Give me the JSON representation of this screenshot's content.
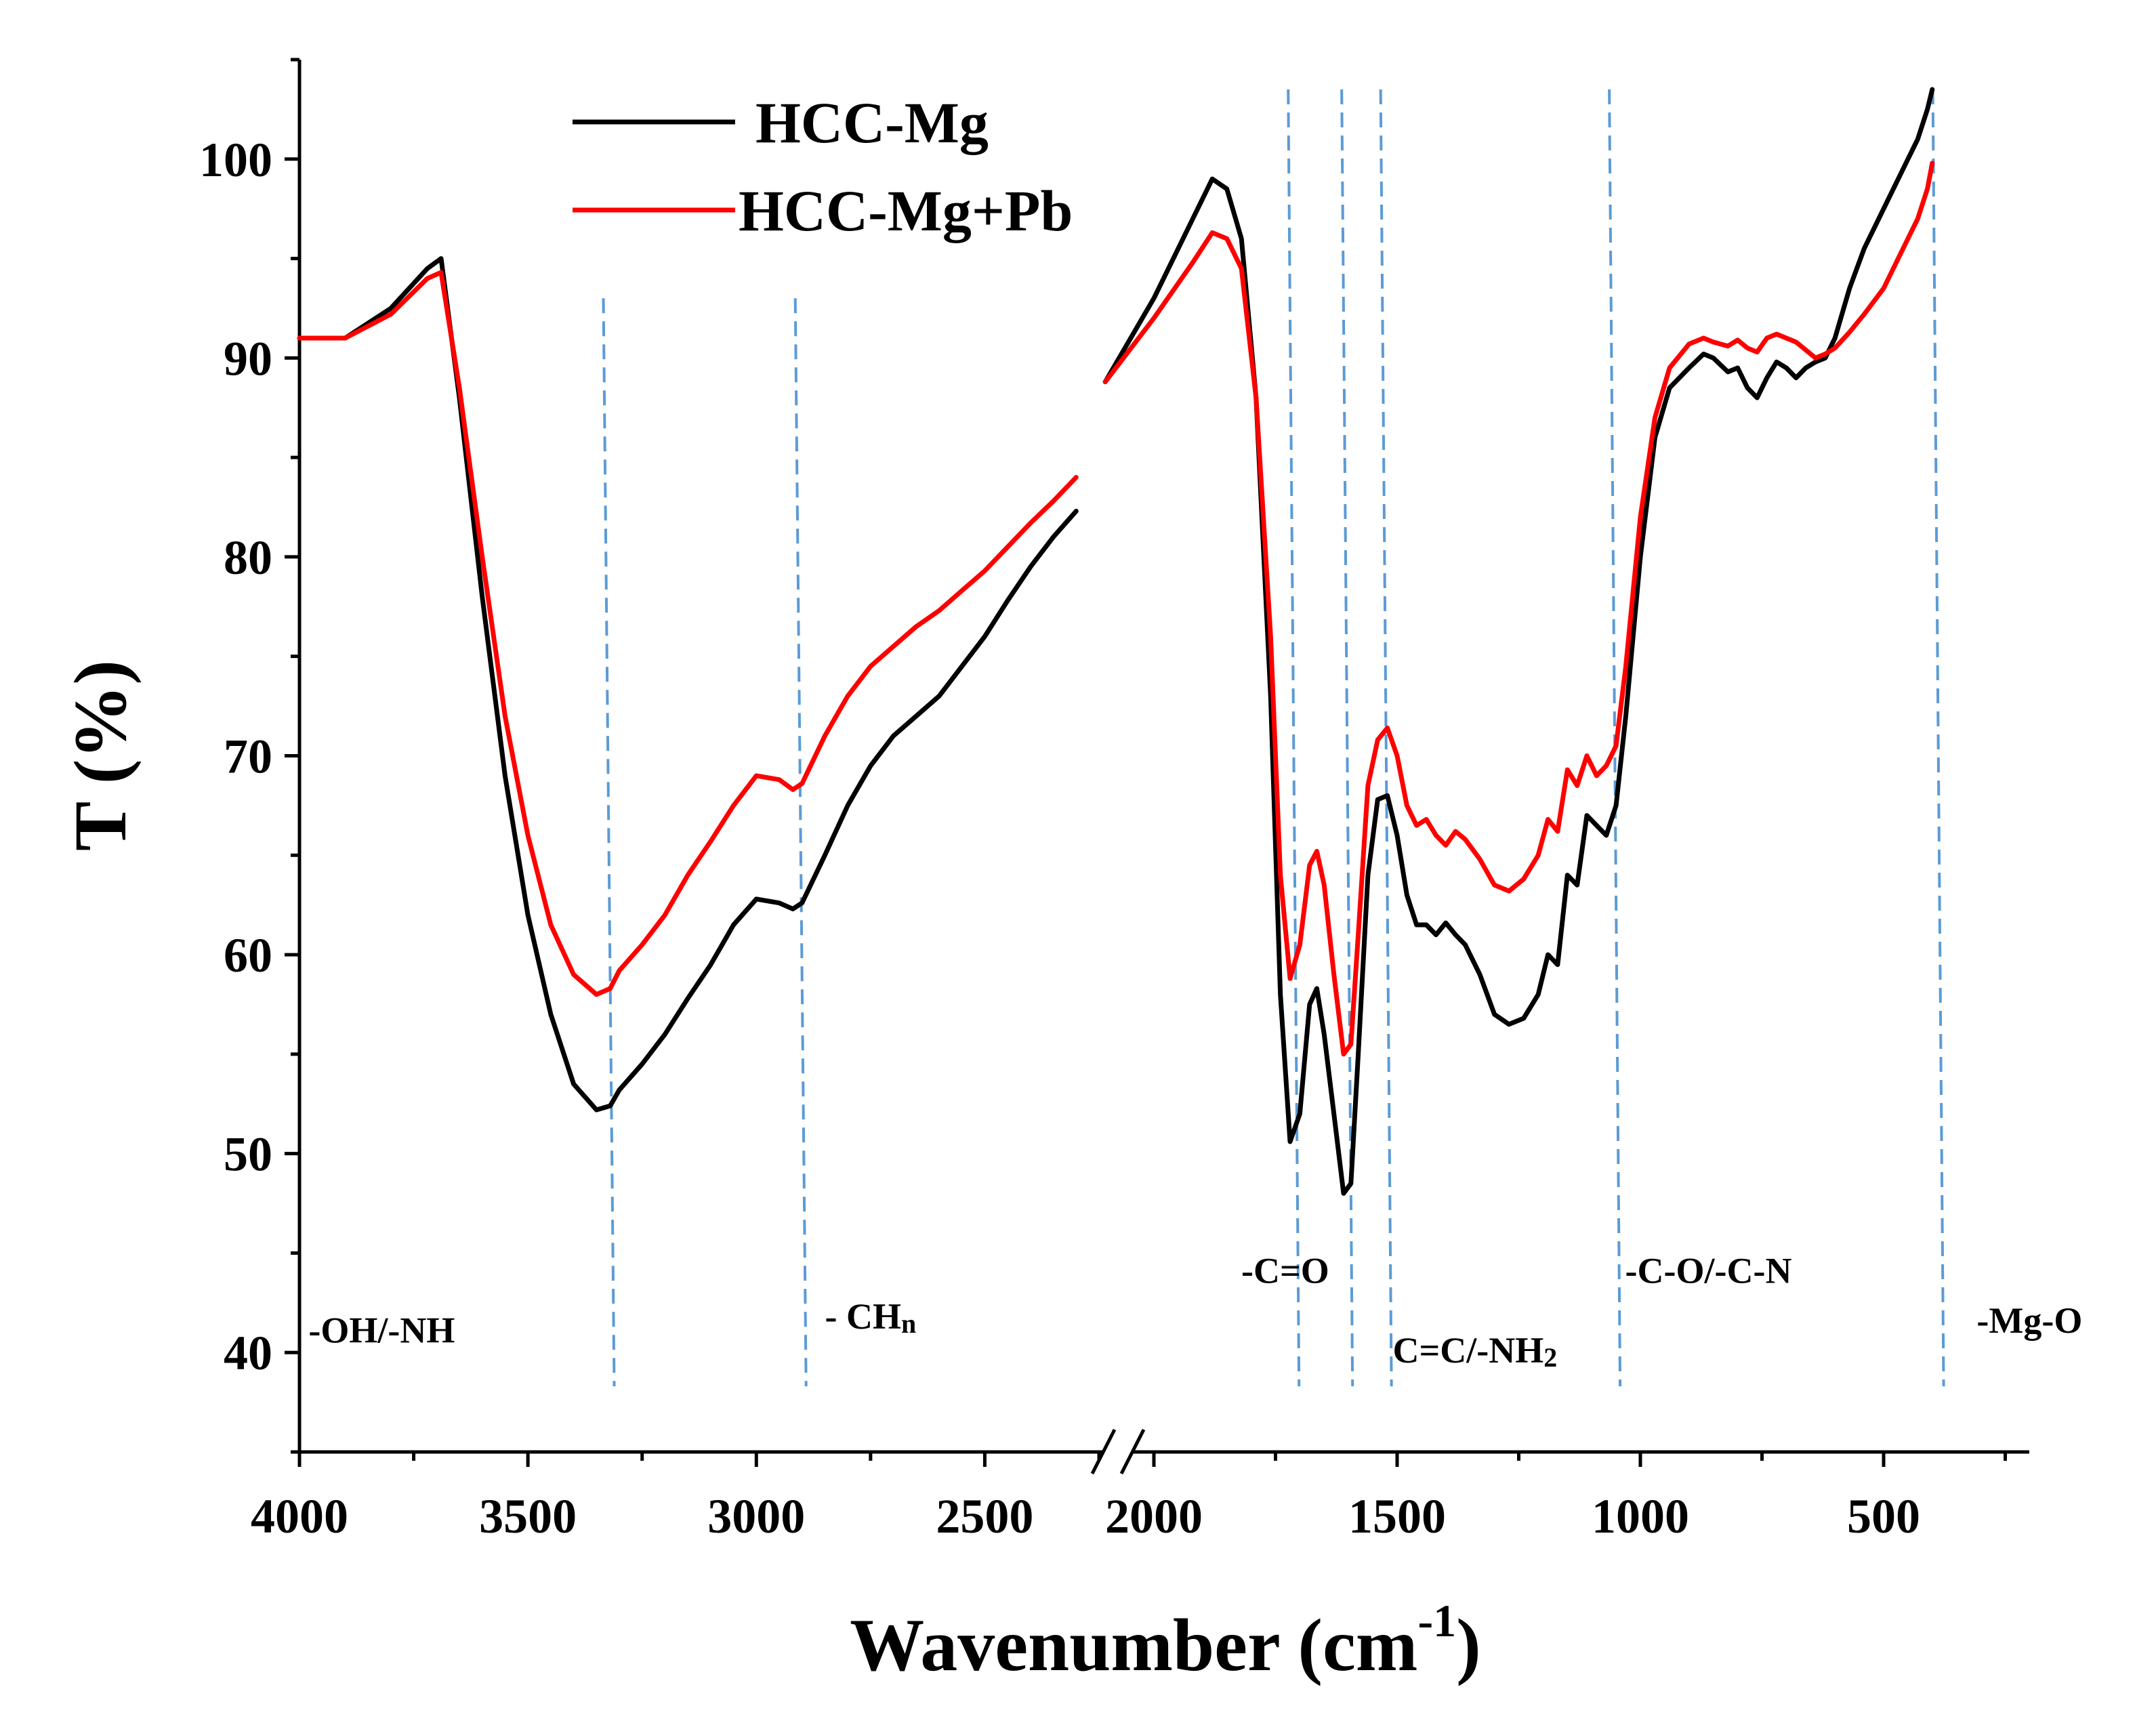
{
  "chart_data": {
    "type": "line",
    "title": "",
    "xlabel": "Wavenumber (cm",
    "xlabel_sup": "-1",
    "xlabel_close": ")",
    "ylabel": "T (%)",
    "xlim": [
      4000,
      250
    ],
    "ylim": [
      35,
      105
    ],
    "axis_break": [
      2250,
      2100
    ],
    "grid": false,
    "legend_position": "top-left",
    "x_ticks": [
      4000,
      3500,
      3000,
      2500,
      2000,
      1500,
      1000,
      500
    ],
    "x_tick_labels": [
      "4000",
      "3500",
      "3000",
      "2500",
      "2000",
      "1500",
      "1000",
      "500"
    ],
    "y_ticks": [
      40,
      50,
      60,
      70,
      80,
      90,
      100
    ],
    "y_tick_labels": [
      "40",
      "50",
      "60",
      "70",
      "80",
      "90",
      "100"
    ],
    "series": [
      {
        "name": "HCC-Mg",
        "color": "#000000",
        "points": [
          [
            4000,
            91.0
          ],
          [
            3900,
            91.0
          ],
          [
            3800,
            92.5
          ],
          [
            3720,
            94.5
          ],
          [
            3690,
            95.0
          ],
          [
            3650,
            88.0
          ],
          [
            3600,
            78.0
          ],
          [
            3550,
            69.0
          ],
          [
            3500,
            62.0
          ],
          [
            3450,
            57.0
          ],
          [
            3400,
            53.5
          ],
          [
            3350,
            52.2
          ],
          [
            3320,
            52.4
          ],
          [
            3300,
            53.2
          ],
          [
            3250,
            54.5
          ],
          [
            3200,
            56.0
          ],
          [
            3150,
            57.8
          ],
          [
            3100,
            59.5
          ],
          [
            3050,
            61.5
          ],
          [
            3000,
            62.8
          ],
          [
            2950,
            62.6
          ],
          [
            2920,
            62.3
          ],
          [
            2900,
            62.6
          ],
          [
            2850,
            65.0
          ],
          [
            2800,
            67.5
          ],
          [
            2750,
            69.5
          ],
          [
            2700,
            71.0
          ],
          [
            2650,
            72.0
          ],
          [
            2600,
            73.0
          ],
          [
            2550,
            74.5
          ],
          [
            2500,
            76.0
          ],
          [
            2450,
            77.8
          ],
          [
            2400,
            79.5
          ],
          [
            2350,
            81.0
          ],
          [
            2300,
            82.3
          ],
          [
            2100,
            88.8
          ],
          [
            2000,
            93.0
          ],
          [
            1920,
            97.0
          ],
          [
            1880,
            99.0
          ],
          [
            1850,
            98.5
          ],
          [
            1820,
            96.0
          ],
          [
            1790,
            88.0
          ],
          [
            1760,
            73.0
          ],
          [
            1740,
            58.0
          ],
          [
            1720,
            50.6
          ],
          [
            1700,
            52.0
          ],
          [
            1680,
            57.5
          ],
          [
            1665,
            58.3
          ],
          [
            1650,
            56.0
          ],
          [
            1630,
            52.0
          ],
          [
            1610,
            48.0
          ],
          [
            1595,
            48.5
          ],
          [
            1580,
            55.0
          ],
          [
            1560,
            64.0
          ],
          [
            1540,
            67.8
          ],
          [
            1520,
            68.0
          ],
          [
            1500,
            66.0
          ],
          [
            1480,
            63.0
          ],
          [
            1460,
            61.5
          ],
          [
            1440,
            61.5
          ],
          [
            1420,
            61.0
          ],
          [
            1400,
            61.6
          ],
          [
            1380,
            61.0
          ],
          [
            1360,
            60.5
          ],
          [
            1330,
            59.0
          ],
          [
            1300,
            57.0
          ],
          [
            1270,
            56.5
          ],
          [
            1240,
            56.8
          ],
          [
            1210,
            58.0
          ],
          [
            1190,
            60.0
          ],
          [
            1170,
            59.5
          ],
          [
            1150,
            64.0
          ],
          [
            1130,
            63.5
          ],
          [
            1110,
            67.0
          ],
          [
            1090,
            66.5
          ],
          [
            1070,
            66.0
          ],
          [
            1050,
            67.5
          ],
          [
            1030,
            72.0
          ],
          [
            1000,
            80.0
          ],
          [
            970,
            86.0
          ],
          [
            940,
            88.5
          ],
          [
            900,
            89.5
          ],
          [
            870,
            90.2
          ],
          [
            850,
            90.0
          ],
          [
            820,
            89.3
          ],
          [
            800,
            89.5
          ],
          [
            780,
            88.5
          ],
          [
            760,
            88.0
          ],
          [
            740,
            89.0
          ],
          [
            720,
            89.8
          ],
          [
            700,
            89.5
          ],
          [
            680,
            89.0
          ],
          [
            660,
            89.5
          ],
          [
            640,
            89.8
          ],
          [
            620,
            90.0
          ],
          [
            600,
            91.0
          ],
          [
            570,
            93.5
          ],
          [
            540,
            95.5
          ],
          [
            500,
            97.5
          ],
          [
            460,
            99.5
          ],
          [
            430,
            101.0
          ],
          [
            410,
            102.5
          ],
          [
            400,
            103.5
          ]
        ]
      },
      {
        "name": "HCC-Mg+Pb",
        "color": "#ff0000",
        "points": [
          [
            4000,
            91.0
          ],
          [
            3900,
            91.0
          ],
          [
            3800,
            92.2
          ],
          [
            3720,
            94.0
          ],
          [
            3690,
            94.3
          ],
          [
            3650,
            88.5
          ],
          [
            3600,
            80.0
          ],
          [
            3550,
            72.0
          ],
          [
            3500,
            66.0
          ],
          [
            3450,
            61.5
          ],
          [
            3400,
            59.0
          ],
          [
            3350,
            58.0
          ],
          [
            3320,
            58.3
          ],
          [
            3300,
            59.2
          ],
          [
            3250,
            60.5
          ],
          [
            3200,
            62.0
          ],
          [
            3150,
            64.0
          ],
          [
            3100,
            65.7
          ],
          [
            3050,
            67.5
          ],
          [
            3000,
            69.0
          ],
          [
            2950,
            68.8
          ],
          [
            2920,
            68.3
          ],
          [
            2900,
            68.6
          ],
          [
            2850,
            71.0
          ],
          [
            2800,
            73.0
          ],
          [
            2750,
            74.5
          ],
          [
            2700,
            75.5
          ],
          [
            2650,
            76.5
          ],
          [
            2600,
            77.3
          ],
          [
            2550,
            78.3
          ],
          [
            2500,
            79.3
          ],
          [
            2450,
            80.5
          ],
          [
            2400,
            81.7
          ],
          [
            2350,
            82.8
          ],
          [
            2300,
            84.0
          ],
          [
            2100,
            88.8
          ],
          [
            2000,
            92.0
          ],
          [
            1920,
            94.8
          ],
          [
            1880,
            96.3
          ],
          [
            1850,
            96.0
          ],
          [
            1820,
            94.5
          ],
          [
            1790,
            88.0
          ],
          [
            1760,
            76.0
          ],
          [
            1740,
            64.0
          ],
          [
            1720,
            58.8
          ],
          [
            1700,
            60.5
          ],
          [
            1680,
            64.5
          ],
          [
            1665,
            65.2
          ],
          [
            1650,
            63.5
          ],
          [
            1630,
            59.0
          ],
          [
            1610,
            55.0
          ],
          [
            1595,
            55.5
          ],
          [
            1580,
            61.0
          ],
          [
            1560,
            68.5
          ],
          [
            1540,
            70.8
          ],
          [
            1520,
            71.4
          ],
          [
            1500,
            70.0
          ],
          [
            1480,
            67.5
          ],
          [
            1460,
            66.5
          ],
          [
            1440,
            66.8
          ],
          [
            1420,
            66.0
          ],
          [
            1400,
            65.5
          ],
          [
            1380,
            66.2
          ],
          [
            1360,
            65.8
          ],
          [
            1330,
            64.8
          ],
          [
            1300,
            63.5
          ],
          [
            1270,
            63.2
          ],
          [
            1240,
            63.8
          ],
          [
            1210,
            65.0
          ],
          [
            1190,
            66.8
          ],
          [
            1170,
            66.2
          ],
          [
            1150,
            69.3
          ],
          [
            1130,
            68.5
          ],
          [
            1110,
            70.0
          ],
          [
            1090,
            69.0
          ],
          [
            1070,
            69.5
          ],
          [
            1050,
            70.5
          ],
          [
            1030,
            74.5
          ],
          [
            1000,
            82.0
          ],
          [
            970,
            87.0
          ],
          [
            940,
            89.5
          ],
          [
            900,
            90.7
          ],
          [
            870,
            91.0
          ],
          [
            850,
            90.8
          ],
          [
            820,
            90.6
          ],
          [
            800,
            90.9
          ],
          [
            780,
            90.5
          ],
          [
            760,
            90.3
          ],
          [
            740,
            91.0
          ],
          [
            720,
            91.2
          ],
          [
            700,
            91.0
          ],
          [
            680,
            90.8
          ],
          [
            660,
            90.4
          ],
          [
            640,
            90.0
          ],
          [
            620,
            90.2
          ],
          [
            600,
            90.5
          ],
          [
            570,
            91.3
          ],
          [
            540,
            92.2
          ],
          [
            500,
            93.5
          ],
          [
            460,
            95.5
          ],
          [
            430,
            97.0
          ],
          [
            410,
            98.5
          ],
          [
            400,
            99.8
          ]
        ]
      }
    ],
    "reference_lines": [
      3320,
      2900,
      1710,
      1600,
      1520,
      1050,
      385
    ],
    "annotations": [
      {
        "text": "-OH/-NH",
        "x": 3820,
        "y": 40.5
      },
      {
        "text": "- CH",
        "sub": "n",
        "x": 2750,
        "y": 41.2
      },
      {
        "text": "-C=O",
        "x": 1730,
        "y": 43.5
      },
      {
        "text": "C=C/-NH",
        "sub": "2",
        "x": 1340,
        "y": 39.5
      },
      {
        "text": "-C-O/-C-N",
        "x": 860,
        "y": 43.5
      },
      {
        "text": "-Mg-O",
        "x": 200,
        "y": 41.0
      }
    ]
  }
}
